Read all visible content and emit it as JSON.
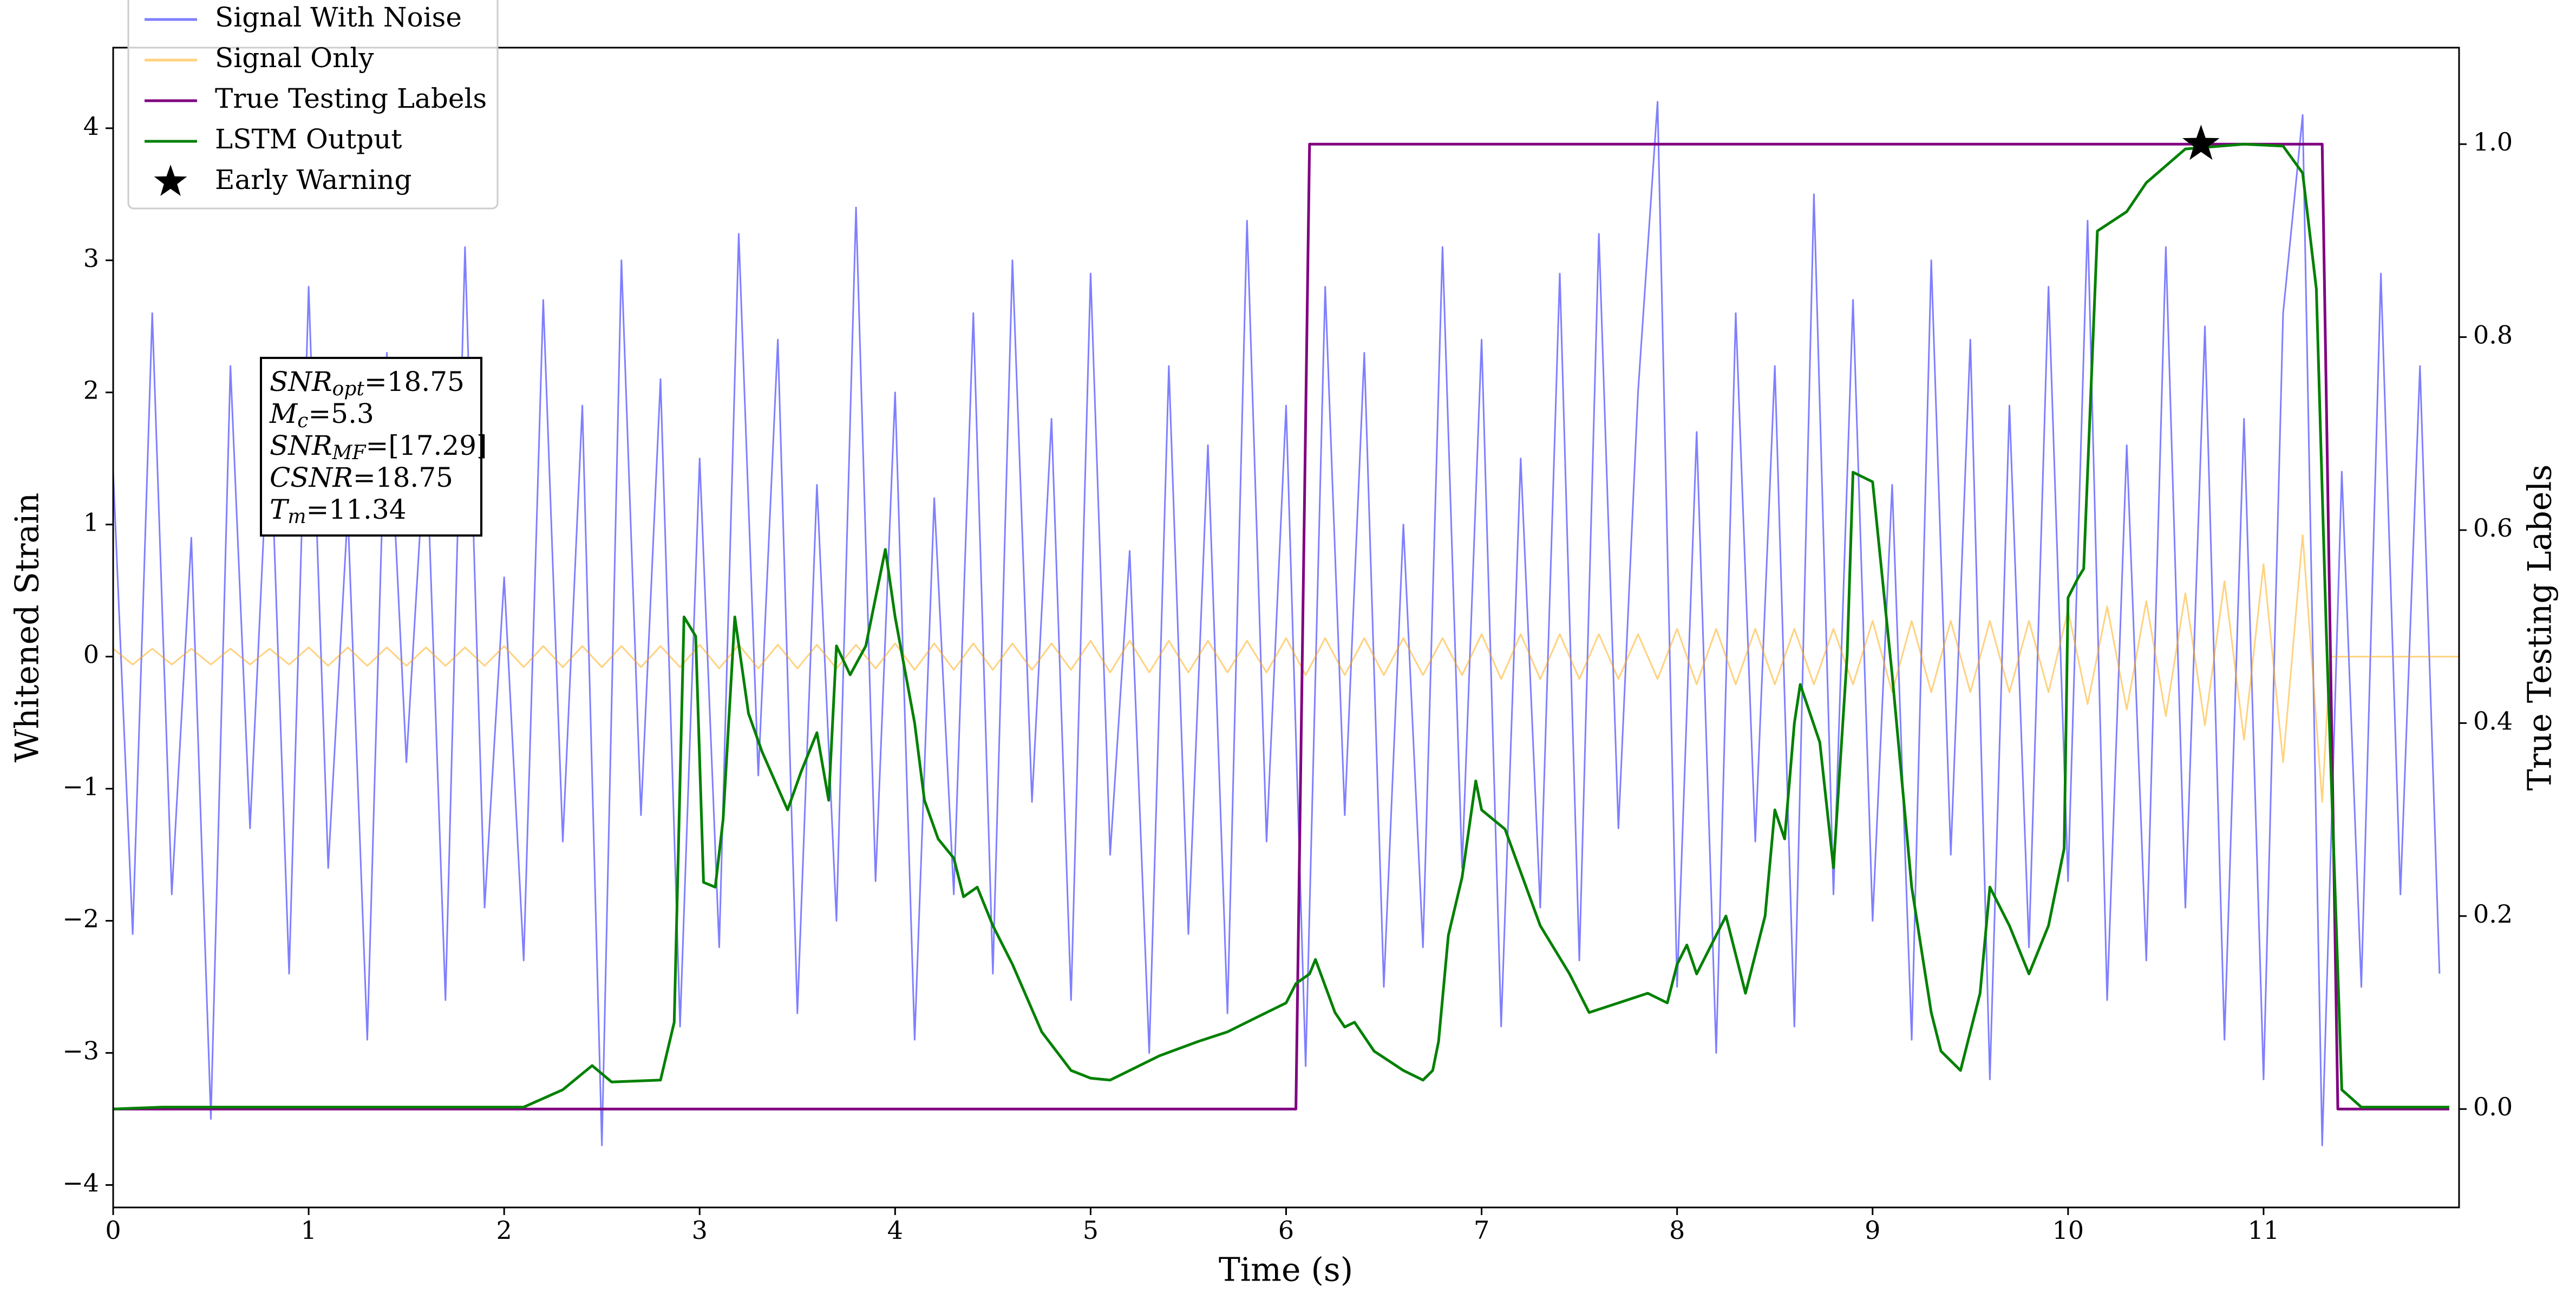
{
  "chart_data": {
    "type": "line",
    "xlabel": "Time (s)",
    "ylabel": "Whitened Strain",
    "y2label": "True Testing Labels",
    "xlim": [
      0,
      12
    ],
    "ylim": [
      -4.17,
      4.61
    ],
    "y2lim": [
      -0.102,
      1.1
    ],
    "xticks": [
      0,
      1,
      2,
      3,
      4,
      5,
      6,
      7,
      8,
      9,
      10,
      11
    ],
    "yticks": [
      {
        "value": -4,
        "label": "−4"
      },
      {
        "value": -3,
        "label": "−3"
      },
      {
        "value": -2,
        "label": "−2"
      },
      {
        "value": -1,
        "label": "−1"
      },
      0,
      1,
      2,
      3,
      4
    ],
    "y2ticks": [
      {
        "value": 0,
        "label": "0.0"
      },
      0.2,
      0.4,
      0.6,
      0.8,
      {
        "value": 1,
        "label": "1.0"
      }
    ],
    "legend": "upper left",
    "series": [
      {
        "name": "Signal With Noise",
        "color": "blue",
        "alpha": 0.5,
        "style": "line",
        "x": [
          0,
          0.1,
          0.2,
          0.3,
          0.4,
          0.5,
          0.6,
          0.7,
          0.8,
          0.9,
          1,
          1.1,
          1.2,
          1.3,
          1.4,
          1.5,
          1.6,
          1.7,
          1.8,
          1.9,
          2,
          2.1,
          2.2,
          2.3,
          2.4,
          2.5,
          2.6,
          2.7,
          2.8,
          2.9,
          3,
          3.1,
          3.2,
          3.3,
          3.4,
          3.5,
          3.6,
          3.7,
          3.8,
          3.9,
          4,
          4.1,
          4.2,
          4.3,
          4.4,
          4.5,
          4.6,
          4.7,
          4.8,
          4.9,
          5,
          5.1,
          5.2,
          5.3,
          5.4,
          5.5,
          5.6,
          5.7,
          5.8,
          5.9,
          6,
          6.1,
          6.2,
          6.3,
          6.4,
          6.5,
          6.6,
          6.7,
          6.8,
          6.9,
          7,
          7.1,
          7.2,
          7.3,
          7.4,
          7.5,
          7.6,
          7.7,
          7.8,
          7.9,
          8,
          8.1,
          8.2,
          8.3,
          8.4,
          8.5,
          8.6,
          8.7,
          8.8,
          8.9,
          9,
          9.1,
          9.2,
          9.3,
          9.4,
          9.5,
          9.6,
          9.7,
          9.8,
          9.9,
          10,
          10.1,
          10.2,
          10.3,
          10.4,
          10.5,
          10.6,
          10.7,
          10.8,
          10.9,
          11,
          11.1,
          11.2,
          11.3,
          11.4,
          11.5,
          11.6,
          11.7,
          11.8,
          11.9
        ],
        "values": [
          1.4,
          -2.1,
          2.6,
          -1.8,
          0.9,
          -3.5,
          2.2,
          -1.3,
          1.9,
          -2.4,
          2.8,
          -1.6,
          1.1,
          -2.9,
          2.3,
          -0.8,
          1.7,
          -2.6,
          3.1,
          -1.9,
          0.6,
          -2.3,
          2.7,
          -1.4,
          1.9,
          -3.7,
          3.0,
          -1.2,
          2.1,
          -2.8,
          1.5,
          -2.2,
          3.2,
          -0.9,
          2.4,
          -2.7,
          1.3,
          -2.0,
          3.4,
          -1.7,
          2.0,
          -2.9,
          1.2,
          -1.8,
          2.6,
          -2.4,
          3.0,
          -1.1,
          1.8,
          -2.6,
          2.9,
          -1.5,
          0.8,
          -3.0,
          2.2,
          -2.1,
          1.6,
          -2.7,
          3.3,
          -1.4,
          1.9,
          -3.1,
          2.8,
          -1.2,
          2.3,
          -2.5,
          1.0,
          -2.2,
          3.1,
          -1.6,
          2.4,
          -2.8,
          1.5,
          -1.9,
          2.9,
          -2.3,
          3.2,
          -1.3,
          2.0,
          4.2,
          -2.5,
          1.7,
          -3.0,
          2.6,
          -1.4,
          2.2,
          -2.8,
          3.5,
          -1.8,
          2.7,
          -2.0,
          1.3,
          -2.9,
          3.0,
          -1.5,
          2.4,
          -3.2,
          1.9,
          -2.2,
          2.8,
          -1.7,
          3.3,
          -2.6,
          1.6,
          -2.3,
          3.1,
          -1.9,
          2.5,
          -2.9,
          1.8,
          -3.2,
          2.6,
          4.1,
          -3.7,
          1.4,
          -2.5,
          2.9,
          -1.8,
          2.2,
          -2.4
        ]
      },
      {
        "name": "Signal Only",
        "color": "orange",
        "alpha": 0.5,
        "style": "line",
        "x": [
          0,
          0.1,
          0.2,
          0.3,
          0.4,
          0.5,
          0.6,
          0.7,
          0.8,
          0.9,
          1,
          1.1,
          1.2,
          1.3,
          1.4,
          1.5,
          1.6,
          1.7,
          1.8,
          1.9,
          2,
          2.1,
          2.2,
          2.3,
          2.4,
          2.5,
          2.6,
          2.7,
          2.8,
          2.9,
          3,
          3.1,
          3.2,
          3.3,
          3.4,
          3.5,
          3.6,
          3.7,
          3.8,
          3.9,
          4,
          4.1,
          4.2,
          4.3,
          4.4,
          4.5,
          4.6,
          4.7,
          4.8,
          4.9,
          5,
          5.1,
          5.2,
          5.3,
          5.4,
          5.5,
          5.6,
          5.7,
          5.8,
          5.9,
          6,
          6.1,
          6.2,
          6.3,
          6.4,
          6.5,
          6.6,
          6.7,
          6.8,
          6.9,
          7,
          7.1,
          7.2,
          7.3,
          7.4,
          7.5,
          7.6,
          7.7,
          7.8,
          7.9,
          8,
          8.1,
          8.2,
          8.3,
          8.4,
          8.5,
          8.6,
          8.7,
          8.8,
          8.9,
          9,
          9.1,
          9.2,
          9.3,
          9.4,
          9.5,
          9.6,
          9.7,
          9.8,
          9.9,
          10,
          10.1,
          10.2,
          10.3,
          10.4,
          10.5,
          10.6,
          10.7,
          10.8,
          10.9,
          11,
          11.1,
          11.2,
          11.3,
          11.34,
          12
        ],
        "values": [
          0.06,
          -0.06,
          0.06,
          -0.06,
          0.06,
          -0.06,
          0.06,
          -0.06,
          0.06,
          -0.06,
          0.07,
          -0.07,
          0.07,
          -0.07,
          0.07,
          -0.07,
          0.07,
          -0.07,
          0.07,
          -0.07,
          0.08,
          -0.08,
          0.08,
          -0.08,
          0.08,
          -0.08,
          0.08,
          -0.08,
          0.08,
          -0.08,
          0.09,
          -0.09,
          0.09,
          -0.09,
          0.09,
          -0.09,
          0.09,
          -0.09,
          0.09,
          -0.09,
          0.1,
          -0.1,
          0.1,
          -0.1,
          0.1,
          -0.1,
          0.1,
          -0.1,
          0.1,
          -0.1,
          0.12,
          -0.12,
          0.12,
          -0.12,
          0.12,
          -0.12,
          0.12,
          -0.12,
          0.12,
          -0.12,
          0.14,
          -0.14,
          0.14,
          -0.14,
          0.14,
          -0.14,
          0.14,
          -0.14,
          0.14,
          -0.14,
          0.17,
          -0.17,
          0.17,
          -0.17,
          0.17,
          -0.17,
          0.17,
          -0.17,
          0.17,
          -0.17,
          0.21,
          -0.21,
          0.21,
          -0.21,
          0.21,
          -0.21,
          0.21,
          -0.21,
          0.21,
          -0.21,
          0.27,
          -0.27,
          0.27,
          -0.27,
          0.27,
          -0.27,
          0.27,
          -0.27,
          0.27,
          -0.27,
          0.35,
          -0.36,
          0.38,
          -0.4,
          0.42,
          -0.45,
          0.48,
          -0.52,
          0.57,
          -0.63,
          0.7,
          -0.8,
          0.92,
          -1.1,
          0,
          0
        ]
      },
      {
        "name": "True Testing Labels",
        "color": "purple",
        "style": "line",
        "axis": "y2",
        "x": [
          0,
          6.05,
          6.12,
          11.3,
          11.38,
          11.95
        ],
        "values": [
          0,
          0,
          1,
          1,
          0,
          0
        ]
      },
      {
        "name": "LSTM Output",
        "color": "green",
        "style": "line",
        "axis": "y2",
        "x": [
          0,
          0.25,
          2.1,
          2.3,
          2.45,
          2.55,
          2.8,
          2.87,
          2.92,
          2.98,
          3.02,
          3.08,
          3.12,
          3.18,
          3.25,
          3.32,
          3.45,
          3.52,
          3.6,
          3.66,
          3.7,
          3.77,
          3.85,
          3.95,
          4.0,
          4.1,
          4.15,
          4.22,
          4.3,
          4.35,
          4.42,
          4.5,
          4.6,
          4.75,
          4.9,
          5.0,
          5.1,
          5.2,
          5.35,
          5.55,
          5.7,
          5.85,
          6.0,
          6.05,
          6.12,
          6.15,
          6.25,
          6.3,
          6.35,
          6.45,
          6.6,
          6.7,
          6.75,
          6.78,
          6.83,
          6.9,
          6.97,
          7.0,
          7.12,
          7.3,
          7.45,
          7.55,
          7.7,
          7.85,
          7.95,
          8.0,
          8.05,
          8.1,
          8.25,
          8.3,
          8.35,
          8.45,
          8.5,
          8.55,
          8.6,
          8.63,
          8.73,
          8.8,
          8.87,
          8.9,
          9.0,
          9.1,
          9.2,
          9.3,
          9.35,
          9.45,
          9.55,
          9.6,
          9.7,
          9.8,
          9.9,
          9.98,
          10.0,
          10.05,
          10.08,
          10.15,
          10.3,
          10.4,
          10.6,
          10.9,
          11.1,
          11.2,
          11.27,
          11.32,
          11.4,
          11.5,
          11.95
        ],
        "values": [
          0,
          0.002,
          0.002,
          0.02,
          0.045,
          0.028,
          0.03,
          0.09,
          0.51,
          0.49,
          0.235,
          0.23,
          0.3,
          0.51,
          0.41,
          0.37,
          0.31,
          0.35,
          0.39,
          0.32,
          0.48,
          0.45,
          0.48,
          0.58,
          0.51,
          0.4,
          0.32,
          0.28,
          0.26,
          0.22,
          0.23,
          0.19,
          0.15,
          0.08,
          0.04,
          0.032,
          0.03,
          0.04,
          0.055,
          0.07,
          0.08,
          0.095,
          0.11,
          0.13,
          0.14,
          0.155,
          0.1,
          0.085,
          0.09,
          0.06,
          0.04,
          0.03,
          0.04,
          0.07,
          0.18,
          0.24,
          0.34,
          0.31,
          0.29,
          0.19,
          0.14,
          0.1,
          0.11,
          0.12,
          0.11,
          0.15,
          0.17,
          0.14,
          0.2,
          0.16,
          0.12,
          0.2,
          0.31,
          0.28,
          0.4,
          0.44,
          0.38,
          0.25,
          0.47,
          0.66,
          0.65,
          0.45,
          0.23,
          0.1,
          0.06,
          0.04,
          0.12,
          0.23,
          0.19,
          0.14,
          0.19,
          0.27,
          0.53,
          0.55,
          0.56,
          0.91,
          0.93,
          0.96,
          0.995,
          1.0,
          0.998,
          0.97,
          0.85,
          0.5,
          0.02,
          0.002,
          0.002
        ]
      },
      {
        "name": "Early Warning",
        "color": "black",
        "style": "star",
        "axis": "y2",
        "x": [
          10.68
        ],
        "values": [
          1.0
        ]
      }
    ],
    "annotation": [
      {
        "symbol": "SNR",
        "sub": "opt",
        "text": "=18.75"
      },
      {
        "symbol": "M",
        "sub": "c",
        "text": "=5.3"
      },
      {
        "symbol": "SNR",
        "sub": "MF",
        "text": "=[17.29]"
      },
      {
        "symbol": "CSNR",
        "text": "=18.75"
      },
      {
        "symbol": "T",
        "sub": "m",
        "text": "=11.34"
      }
    ]
  }
}
